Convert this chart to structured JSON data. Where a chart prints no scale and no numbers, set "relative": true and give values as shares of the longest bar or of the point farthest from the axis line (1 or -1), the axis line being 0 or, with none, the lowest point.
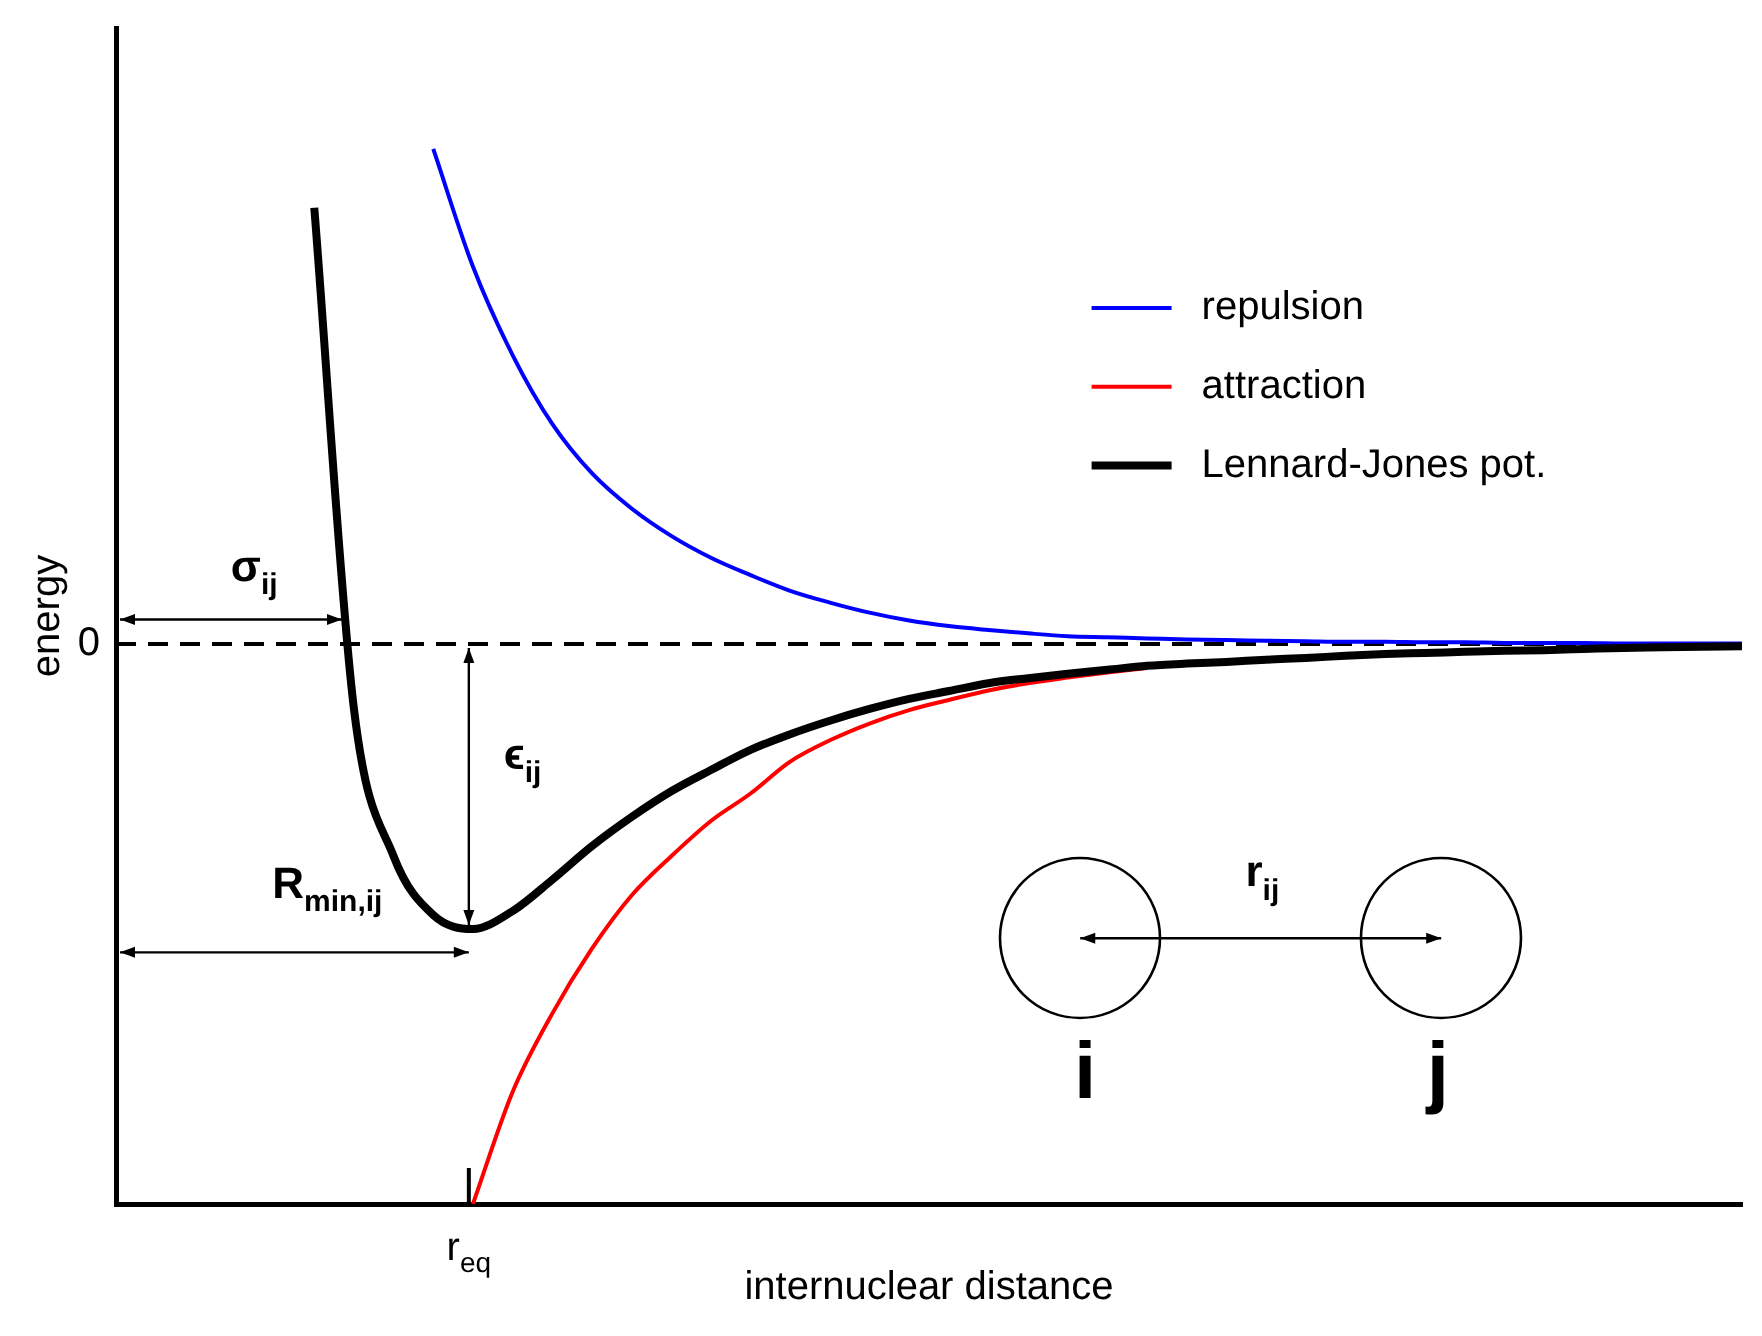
{
  "chart_data": {
    "type": "line",
    "relative": true,
    "xlabel": "internuclear distance",
    "ylabel": "energy",
    "categories": [
      null,
      null,
      null,
      null,
      null,
      null,
      null,
      null,
      null,
      null,
      null,
      null,
      null,
      null,
      null,
      null,
      null,
      null,
      null,
      null,
      null,
      null,
      null,
      null,
      null,
      null,
      null,
      null,
      null,
      null,
      null,
      null,
      null,
      null,
      null,
      null,
      null,
      null,
      null,
      null,
      null,
      null
    ],
    "series": [
      {
        "name": "repulsion",
        "color": "#0000ff",
        "values": [
          null,
          null,
          null,
          null,
          null,
          null,
          null,
          null,
          0.884,
          0.674,
          0.516,
          0.393,
          0.305,
          0.242,
          0.193,
          0.154,
          0.123,
          0.095,
          0.074,
          0.056,
          0.042,
          0.032,
          0.025,
          0.019,
          0.014,
          0.012,
          0.01,
          0.008,
          0.007,
          0.006,
          0.005,
          0.004,
          0.004,
          0.003,
          0.003,
          0.002,
          0.002,
          0.002,
          0.001,
          0.001,
          0.001,
          0.001
        ]
      },
      {
        "name": "attraction",
        "color": "#ff0000",
        "values": [
          null,
          null,
          null,
          null,
          null,
          null,
          null,
          null,
          null,
          -1,
          -0.8,
          -0.66,
          -0.544,
          -0.449,
          -0.379,
          -0.316,
          -0.267,
          -0.21,
          -0.172,
          -0.142,
          -0.118,
          -0.1,
          -0.083,
          -0.07,
          -0.06,
          -0.051,
          -0.043,
          null,
          null,
          null,
          null,
          null,
          null,
          null,
          null,
          null,
          null,
          null,
          null,
          null,
          null,
          null
        ]
      },
      {
        "name": "Lennard-Jones pot.",
        "color": "#000000",
        "values": [
          null,
          null,
          null,
          null,
          null,
          0.779,
          -0.116,
          -0.379,
          -0.484,
          -0.509,
          -0.477,
          -0.421,
          -0.361,
          -0.309,
          -0.263,
          -0.225,
          -0.189,
          -0.161,
          -0.137,
          -0.116,
          -0.098,
          -0.084,
          -0.07,
          -0.061,
          -0.053,
          -0.046,
          -0.039,
          -0.035,
          -0.032,
          -0.028,
          -0.025,
          -0.021,
          -0.018,
          -0.016,
          -0.014,
          -0.012,
          -0.011,
          -0.009,
          -0.007,
          -0.006,
          -0.005,
          -0.004
        ]
      }
    ],
    "ref_lines": [
      {
        "axis": "y",
        "value": 0,
        "label": "0",
        "line_style": "dashed",
        "color": "#000000"
      }
    ],
    "annotations": [
      "σ$_{ij}$",
      "ϵ$_{ij}$",
      "R$_{min,ij}$",
      "r$_{ij}$",
      "i",
      "j",
      "r$_{eq}$"
    ],
    "legend": "top right",
    "grid": false,
    "marker": "none",
    "line_style": "solid"
  }
}
